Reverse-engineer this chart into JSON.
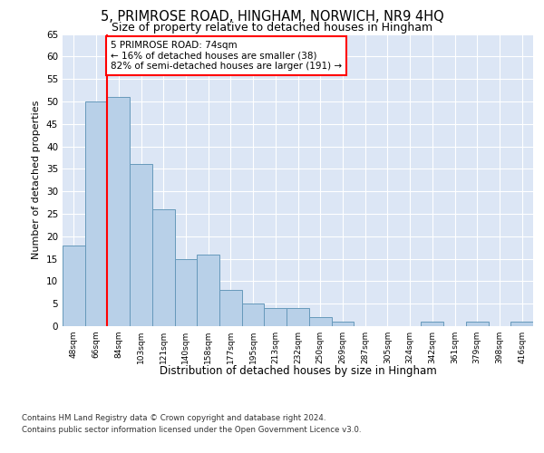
{
  "title_line1": "5, PRIMROSE ROAD, HINGHAM, NORWICH, NR9 4HQ",
  "title_line2": "Size of property relative to detached houses in Hingham",
  "xlabel": "Distribution of detached houses by size in Hingham",
  "ylabel": "Number of detached properties",
  "categories": [
    "48sqm",
    "66sqm",
    "84sqm",
    "103sqm",
    "121sqm",
    "140sqm",
    "158sqm",
    "177sqm",
    "195sqm",
    "213sqm",
    "232sqm",
    "250sqm",
    "269sqm",
    "287sqm",
    "305sqm",
    "324sqm",
    "342sqm",
    "361sqm",
    "379sqm",
    "398sqm",
    "416sqm"
  ],
  "values": [
    18,
    50,
    51,
    36,
    26,
    15,
    16,
    8,
    5,
    4,
    4,
    2,
    1,
    0,
    0,
    0,
    1,
    0,
    1,
    0,
    1
  ],
  "bar_color": "#b8d0e8",
  "bar_edge_color": "#6699bb",
  "vline_color": "red",
  "vline_x": 1.5,
  "annotation_text": "5 PRIMROSE ROAD: 74sqm\n← 16% of detached houses are smaller (38)\n82% of semi-detached houses are larger (191) →",
  "annotation_box_color": "white",
  "annotation_box_edge_color": "red",
  "ylim": [
    0,
    65
  ],
  "yticks": [
    0,
    5,
    10,
    15,
    20,
    25,
    30,
    35,
    40,
    45,
    50,
    55,
    60,
    65
  ],
  "background_color": "#dce6f5",
  "footer_line1": "Contains HM Land Registry data © Crown copyright and database right 2024.",
  "footer_line2": "Contains public sector information licensed under the Open Government Licence v3.0."
}
